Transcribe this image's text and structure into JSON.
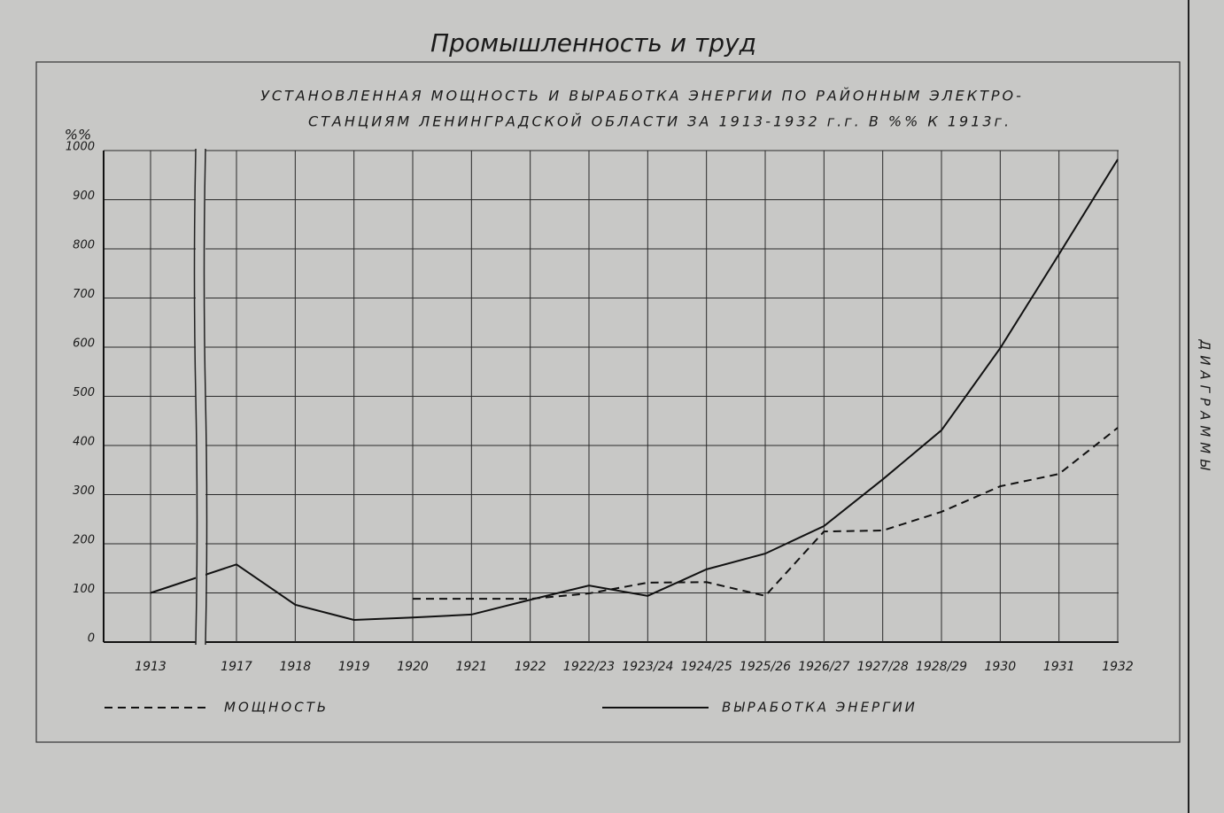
{
  "chart_data": {
    "type": "line",
    "header": "Промышленность и труд",
    "title": [
      "УСТАНОВЛЕННАЯ МОЩНОСТЬ И ВЫРАБОТКА ЭНЕРГИИ ПО РАЙОННЫМ ЭЛЕКТРО-",
      "СТАНЦИЯМ ЛЕНИНГРАДСКОЙ ОБЛАСТИ ЗА 1913-1932 г.г. В %% К 1913г."
    ],
    "y_label": "%%",
    "side_label": "ДИАГРАММЫ",
    "categories": [
      "1913",
      "1917",
      "1918",
      "1919",
      "1920",
      "1921",
      "1922",
      "1922/23",
      "1923/24",
      "1924/25",
      "1925/26",
      "1926/27",
      "1927/28",
      "1928/29",
      "1930",
      "1931",
      "1932"
    ],
    "series": [
      {
        "name": "МОЩНОСТЬ",
        "color": "#111111",
        "dashed": true,
        "values": [
          null,
          null,
          null,
          null,
          88,
          88,
          88,
          99,
          121,
          122,
          94,
          225,
          227,
          265,
          317,
          342,
          436
        ]
      },
      {
        "name": "ВЫРАБОТКА ЭНЕРГИИ",
        "color": "#111111",
        "dashed": false,
        "values": [
          100,
          158,
          76,
          45,
          50,
          56,
          86,
          115,
          94,
          148,
          180,
          236,
          331,
          431,
          598,
          789,
          982
        ]
      }
    ],
    "ylim": [
      0,
      1000
    ],
    "yticks": [
      0,
      100,
      200,
      300,
      400,
      500,
      600,
      700,
      800,
      900,
      1000
    ],
    "grid": true,
    "legend": "bottom"
  }
}
